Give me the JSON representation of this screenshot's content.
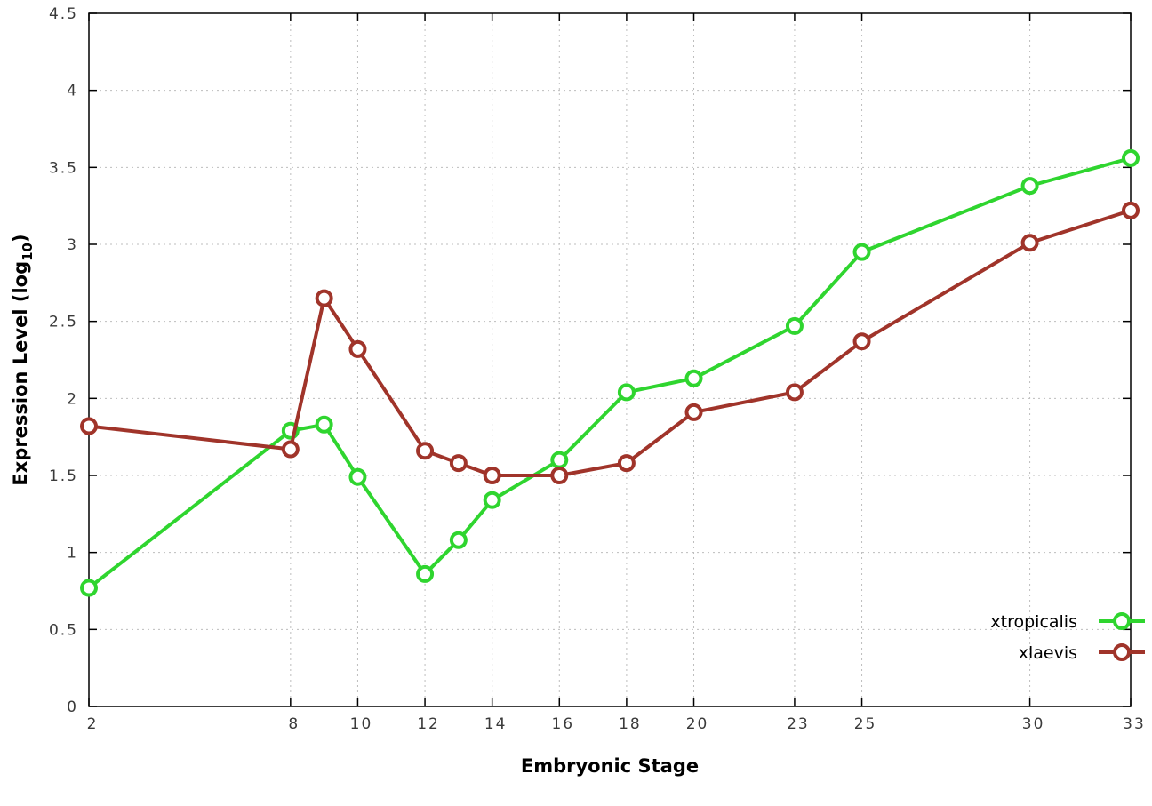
{
  "chart_data": {
    "type": "line",
    "title": "",
    "xlabel": "Embryonic Stage",
    "ylabel": "Expression Level (log10)",
    "ylabel_parts": {
      "main": "Expression Level (log",
      "sub": "10",
      "close": ")"
    },
    "x": [
      2,
      8,
      9,
      10,
      12,
      13,
      14,
      16,
      18,
      20,
      23,
      25,
      30,
      33
    ],
    "xlim": [
      2,
      33
    ],
    "ylim": [
      0,
      4.5
    ],
    "xticks": [
      2,
      8,
      10,
      12,
      14,
      16,
      18,
      20,
      23,
      25,
      30,
      33
    ],
    "xtick_labels": [
      "2",
      "8",
      "10",
      "12",
      "14",
      "16",
      "18",
      "20",
      "23",
      "25",
      "30",
      "33"
    ],
    "yticks": [
      0,
      0.5,
      1,
      1.5,
      2,
      2.5,
      3,
      3.5,
      4,
      4.5
    ],
    "ytick_labels": [
      "0",
      "0.5",
      "1",
      "1.5",
      "2",
      "2.5",
      "3",
      "3.5",
      "4",
      "4.5"
    ],
    "grid": true,
    "grid_color": "#bdbdbd",
    "legend_position": "bottom-right",
    "series": [
      {
        "name": "xtropicalis",
        "color": "#2fd52f",
        "values": [
          0.77,
          1.79,
          1.83,
          1.49,
          0.86,
          1.08,
          1.34,
          1.6,
          2.04,
          2.13,
          2.47,
          2.95,
          3.38,
          3.56
        ]
      },
      {
        "name": "xlaevis",
        "color": "#a0342a",
        "values": [
          1.82,
          1.67,
          2.65,
          2.32,
          1.66,
          1.58,
          1.5,
          1.5,
          1.58,
          1.91,
          2.04,
          2.37,
          3.01,
          3.22
        ]
      }
    ]
  }
}
